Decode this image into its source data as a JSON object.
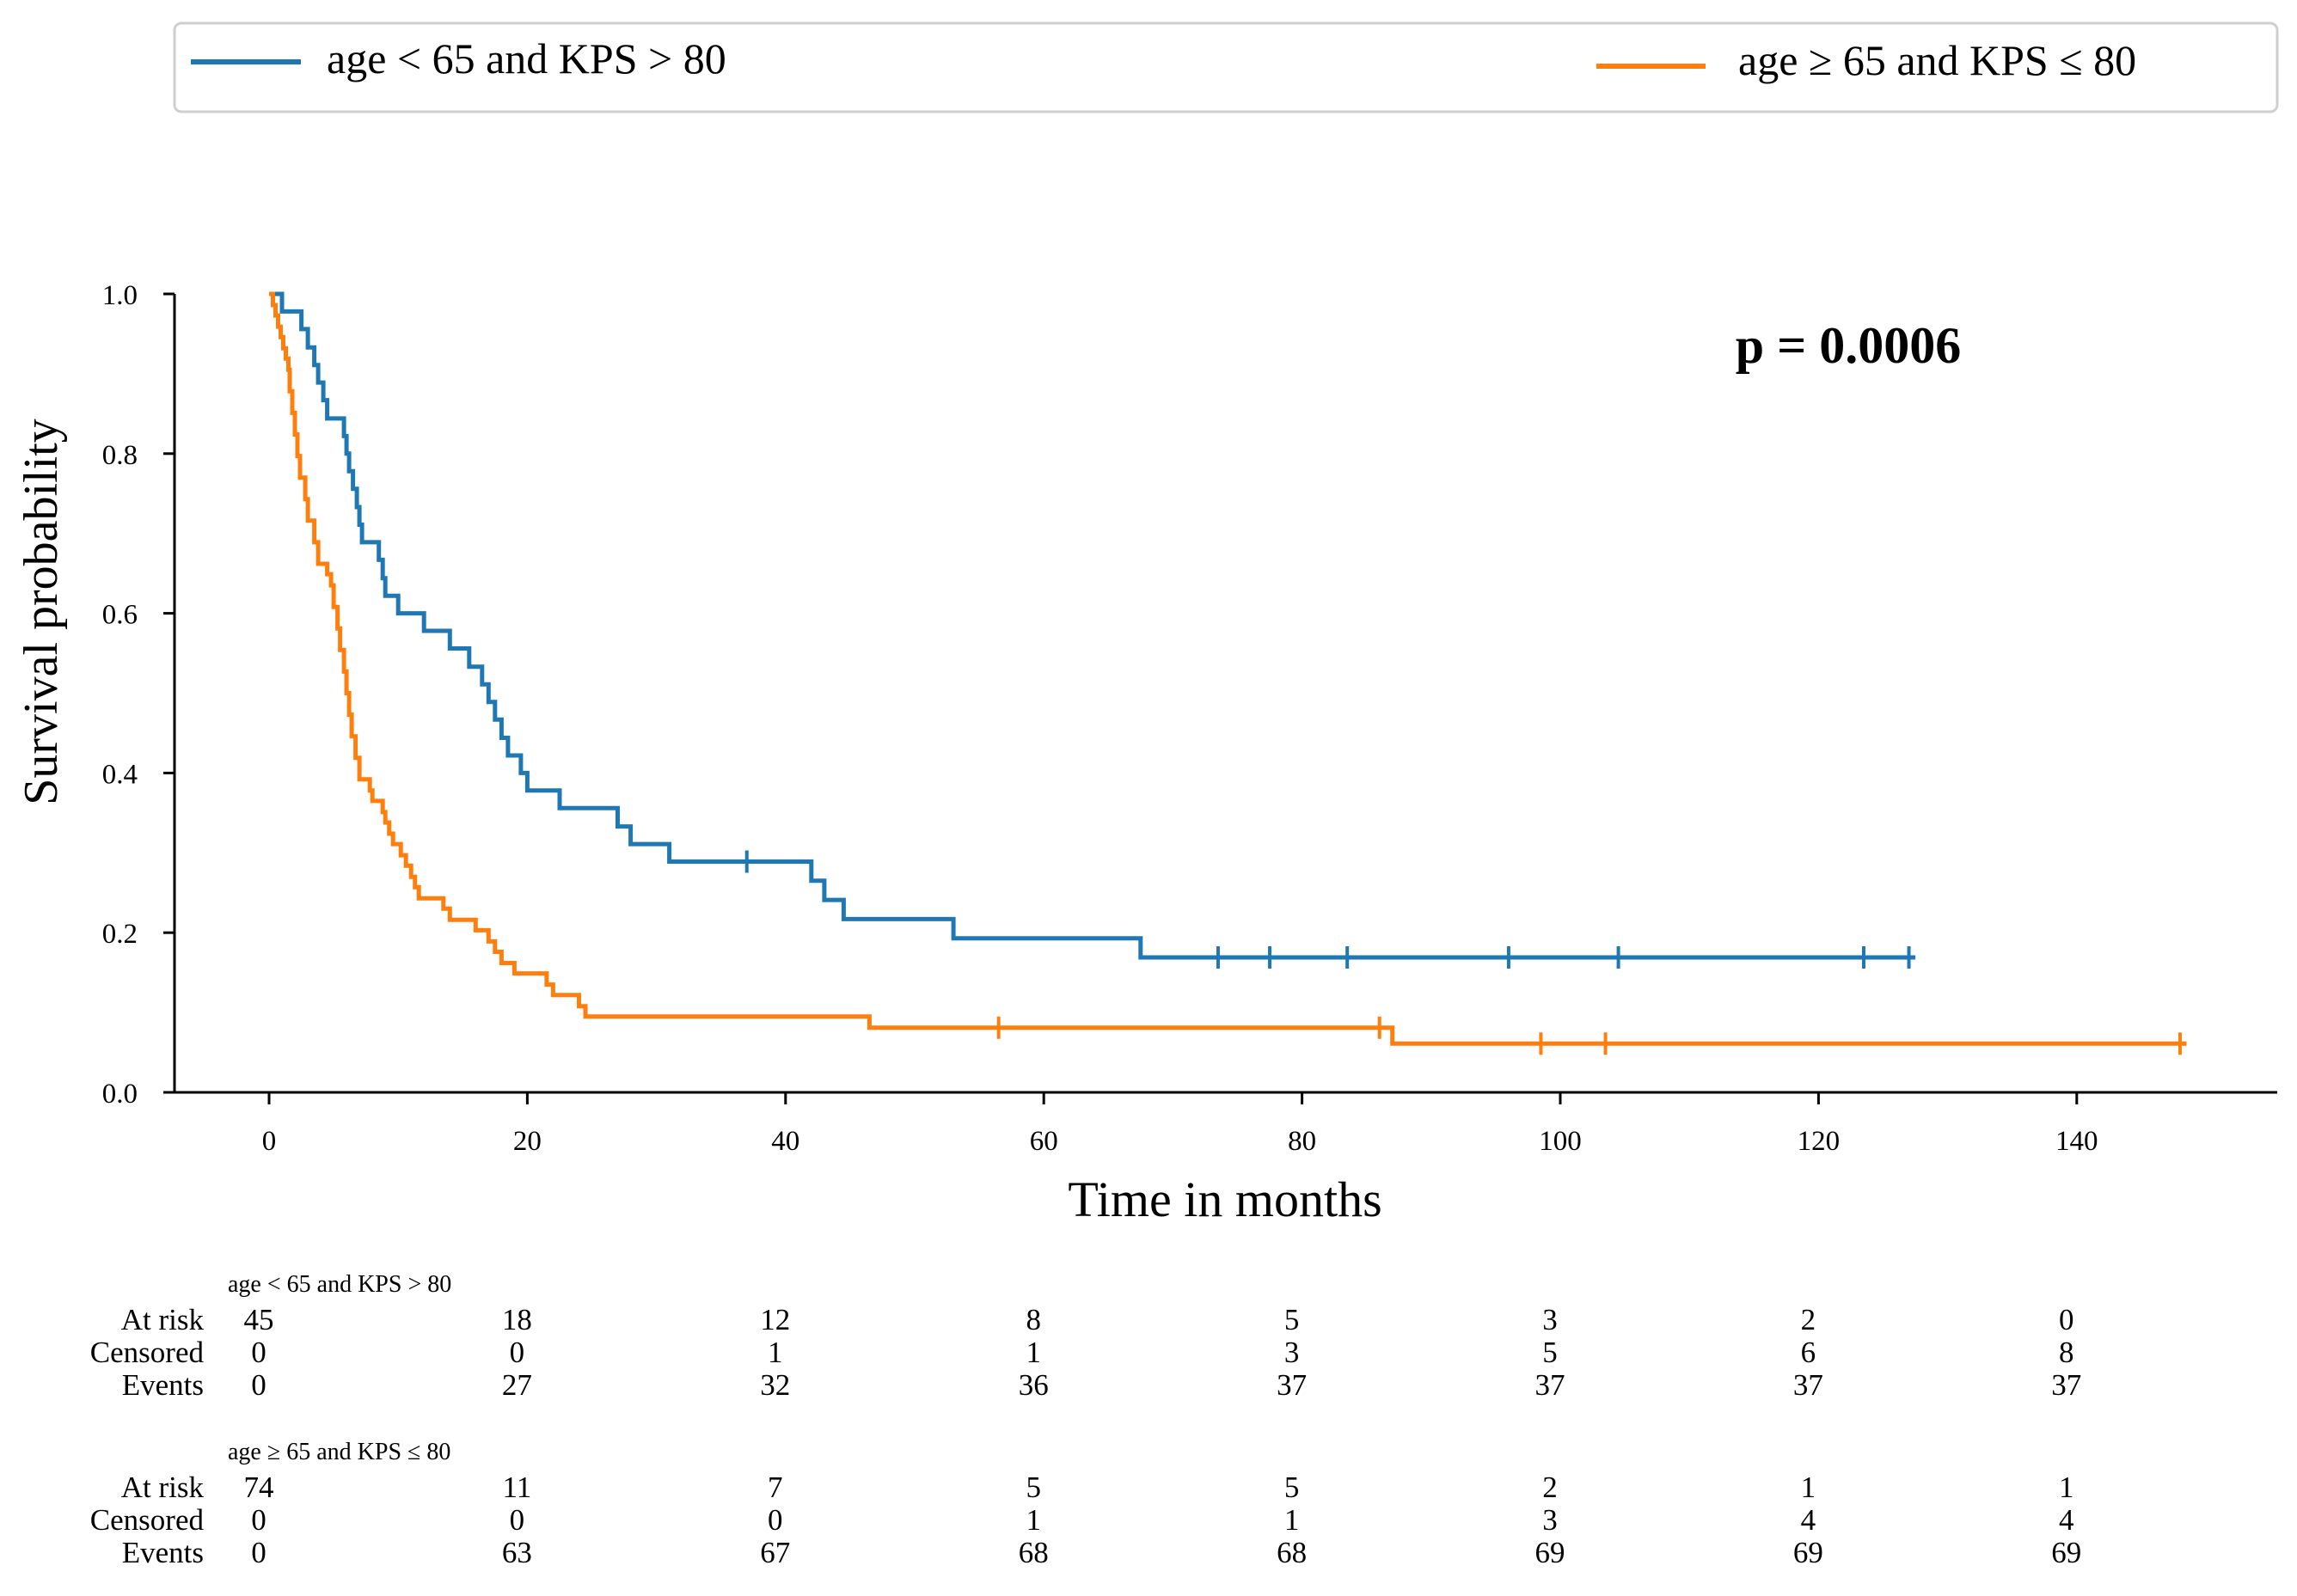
{
  "chart_data": {
    "type": "line",
    "subtype": "kaplan-meier",
    "xlabel": "Time in months",
    "ylabel": "Survival probability",
    "xlim": [
      -9,
      156
    ],
    "ylim": [
      0.0,
      1.0
    ],
    "xticks": [
      0,
      20,
      40,
      60,
      80,
      100,
      120,
      140
    ],
    "yticks": [
      0.0,
      0.2,
      0.4,
      0.6,
      0.8,
      1.0
    ],
    "annotation": "p = 0.0006",
    "legend_position": "top",
    "grid": false,
    "series": [
      {
        "name": "age < 65 and KPS > 80",
        "color": "#1f77b4",
        "points": [
          [
            0,
            1.0
          ],
          [
            1,
            1.0
          ],
          [
            1,
            0.978
          ],
          [
            2.5,
            0.978
          ],
          [
            2.5,
            0.956
          ],
          [
            3,
            0.956
          ],
          [
            3,
            0.933
          ],
          [
            3.5,
            0.933
          ],
          [
            3.5,
            0.911
          ],
          [
            3.8,
            0.911
          ],
          [
            3.8,
            0.889
          ],
          [
            4.2,
            0.889
          ],
          [
            4.2,
            0.867
          ],
          [
            4.5,
            0.867
          ],
          [
            4.5,
            0.844
          ],
          [
            5.5,
            0.844
          ],
          [
            5.5,
            0.844
          ],
          [
            5.8,
            0.844
          ],
          [
            5.8,
            0.822
          ],
          [
            6,
            0.822
          ],
          [
            6,
            0.8
          ],
          [
            6.2,
            0.8
          ],
          [
            6.2,
            0.778
          ],
          [
            6.5,
            0.778
          ],
          [
            6.5,
            0.756
          ],
          [
            6.8,
            0.756
          ],
          [
            6.8,
            0.733
          ],
          [
            7,
            0.733
          ],
          [
            7,
            0.711
          ],
          [
            7.2,
            0.711
          ],
          [
            7.2,
            0.689
          ],
          [
            8.5,
            0.689
          ],
          [
            8.5,
            0.667
          ],
          [
            8.8,
            0.667
          ],
          [
            8.8,
            0.644
          ],
          [
            9,
            0.644
          ],
          [
            9,
            0.622
          ],
          [
            10,
            0.622
          ],
          [
            10,
            0.6
          ],
          [
            12,
            0.6
          ],
          [
            12,
            0.578
          ],
          [
            14,
            0.578
          ],
          [
            14,
            0.556
          ],
          [
            15.5,
            0.556
          ],
          [
            15.5,
            0.533
          ],
          [
            16.5,
            0.533
          ],
          [
            16.5,
            0.511
          ],
          [
            17,
            0.511
          ],
          [
            17,
            0.489
          ],
          [
            17.5,
            0.489
          ],
          [
            17.5,
            0.467
          ],
          [
            18,
            0.467
          ],
          [
            18,
            0.444
          ],
          [
            18.5,
            0.444
          ],
          [
            18.5,
            0.422
          ],
          [
            19.5,
            0.422
          ],
          [
            19.5,
            0.4
          ],
          [
            20,
            0.4
          ],
          [
            20,
            0.378
          ],
          [
            22.5,
            0.378
          ],
          [
            22.5,
            0.356
          ],
          [
            27,
            0.356
          ],
          [
            27,
            0.333
          ],
          [
            28,
            0.333
          ],
          [
            28,
            0.311
          ],
          [
            31,
            0.311
          ],
          [
            31,
            0.289
          ],
          [
            37,
            0.289
          ],
          [
            42,
            0.289
          ],
          [
            42,
            0.265
          ],
          [
            43,
            0.265
          ],
          [
            43,
            0.241
          ],
          [
            44.5,
            0.241
          ],
          [
            44.5,
            0.217
          ],
          [
            53,
            0.217
          ],
          [
            53,
            0.193
          ],
          [
            67.5,
            0.193
          ],
          [
            67.5,
            0.169
          ],
          [
            127.5,
            0.169
          ]
        ],
        "censored": [
          [
            37,
            0.289
          ],
          [
            73.5,
            0.169
          ],
          [
            77.5,
            0.169
          ],
          [
            83.5,
            0.169
          ],
          [
            96,
            0.169
          ],
          [
            104.5,
            0.169
          ],
          [
            123.5,
            0.169
          ],
          [
            127,
            0.169
          ]
        ]
      },
      {
        "name": "age ≥ 65 and KPS ≤ 80",
        "color": "#ff7f0e",
        "points": [
          [
            0,
            1.0
          ],
          [
            0.3,
            1.0
          ],
          [
            0.3,
            0.986
          ],
          [
            0.5,
            0.986
          ],
          [
            0.5,
            0.973
          ],
          [
            0.7,
            0.973
          ],
          [
            0.7,
            0.959
          ],
          [
            0.9,
            0.959
          ],
          [
            0.9,
            0.946
          ],
          [
            1.1,
            0.946
          ],
          [
            1.1,
            0.932
          ],
          [
            1.3,
            0.932
          ],
          [
            1.3,
            0.919
          ],
          [
            1.5,
            0.919
          ],
          [
            1.5,
            0.905
          ],
          [
            1.6,
            0.905
          ],
          [
            1.6,
            0.878
          ],
          [
            1.8,
            0.878
          ],
          [
            1.8,
            0.851
          ],
          [
            2,
            0.851
          ],
          [
            2,
            0.824
          ],
          [
            2.2,
            0.824
          ],
          [
            2.2,
            0.797
          ],
          [
            2.4,
            0.797
          ],
          [
            2.4,
            0.77
          ],
          [
            2.8,
            0.77
          ],
          [
            2.8,
            0.743
          ],
          [
            3,
            0.743
          ],
          [
            3,
            0.716
          ],
          [
            3.5,
            0.716
          ],
          [
            3.5,
            0.689
          ],
          [
            3.8,
            0.689
          ],
          [
            3.8,
            0.662
          ],
          [
            4.5,
            0.662
          ],
          [
            4.5,
            0.649
          ],
          [
            4.8,
            0.649
          ],
          [
            4.8,
            0.635
          ],
          [
            5,
            0.635
          ],
          [
            5,
            0.608
          ],
          [
            5.3,
            0.608
          ],
          [
            5.3,
            0.581
          ],
          [
            5.5,
            0.581
          ],
          [
            5.5,
            0.554
          ],
          [
            5.8,
            0.554
          ],
          [
            5.8,
            0.527
          ],
          [
            6,
            0.527
          ],
          [
            6,
            0.5
          ],
          [
            6.2,
            0.5
          ],
          [
            6.2,
            0.473
          ],
          [
            6.4,
            0.473
          ],
          [
            6.4,
            0.446
          ],
          [
            6.7,
            0.446
          ],
          [
            6.7,
            0.419
          ],
          [
            7,
            0.419
          ],
          [
            7,
            0.392
          ],
          [
            7.8,
            0.392
          ],
          [
            7.8,
            0.378
          ],
          [
            8,
            0.378
          ],
          [
            8,
            0.365
          ],
          [
            8.8,
            0.365
          ],
          [
            8.8,
            0.351
          ],
          [
            9,
            0.351
          ],
          [
            9,
            0.338
          ],
          [
            9.3,
            0.338
          ],
          [
            9.3,
            0.324
          ],
          [
            9.6,
            0.324
          ],
          [
            9.6,
            0.311
          ],
          [
            10.2,
            0.311
          ],
          [
            10.2,
            0.297
          ],
          [
            10.6,
            0.297
          ],
          [
            10.6,
            0.284
          ],
          [
            11,
            0.284
          ],
          [
            11,
            0.27
          ],
          [
            11.3,
            0.27
          ],
          [
            11.3,
            0.257
          ],
          [
            11.6,
            0.257
          ],
          [
            11.6,
            0.243
          ],
          [
            13.5,
            0.243
          ],
          [
            13.5,
            0.23
          ],
          [
            14,
            0.23
          ],
          [
            14,
            0.216
          ],
          [
            16,
            0.216
          ],
          [
            16,
            0.203
          ],
          [
            17,
            0.203
          ],
          [
            17,
            0.189
          ],
          [
            17.5,
            0.189
          ],
          [
            17.5,
            0.176
          ],
          [
            18,
            0.176
          ],
          [
            18,
            0.162
          ],
          [
            19,
            0.162
          ],
          [
            19,
            0.149
          ],
          [
            21.5,
            0.149
          ],
          [
            21.5,
            0.135
          ],
          [
            22,
            0.135
          ],
          [
            22,
            0.122
          ],
          [
            24,
            0.122
          ],
          [
            24,
            0.108
          ],
          [
            24.5,
            0.108
          ],
          [
            24.5,
            0.095
          ],
          [
            46.5,
            0.095
          ],
          [
            46.5,
            0.081
          ],
          [
            87,
            0.081
          ],
          [
            87,
            0.061
          ],
          [
            148.5,
            0.061
          ]
        ],
        "censored": [
          [
            56.5,
            0.081
          ],
          [
            86,
            0.081
          ],
          [
            98.5,
            0.061
          ],
          [
            103.5,
            0.061
          ],
          [
            148,
            0.061
          ]
        ]
      }
    ],
    "risk_table": {
      "row_labels": [
        "At risk",
        "Censored",
        "Events"
      ],
      "timepoints": [
        0,
        20,
        40,
        60,
        80,
        100,
        120,
        140
      ],
      "groups": [
        {
          "name": "age < 65 and KPS > 80",
          "at_risk": [
            45,
            18,
            12,
            8,
            5,
            3,
            2,
            0
          ],
          "censored": [
            0,
            0,
            1,
            1,
            3,
            5,
            6,
            8
          ],
          "events": [
            0,
            27,
            32,
            36,
            37,
            37,
            37,
            37
          ]
        },
        {
          "name": "age ≥ 65 and KPS ≤ 80",
          "at_risk": [
            74,
            11,
            7,
            5,
            5,
            2,
            1,
            1
          ],
          "censored": [
            0,
            0,
            0,
            1,
            1,
            3,
            4,
            4
          ],
          "events": [
            0,
            63,
            67,
            68,
            68,
            69,
            69,
            69
          ]
        }
      ]
    }
  }
}
